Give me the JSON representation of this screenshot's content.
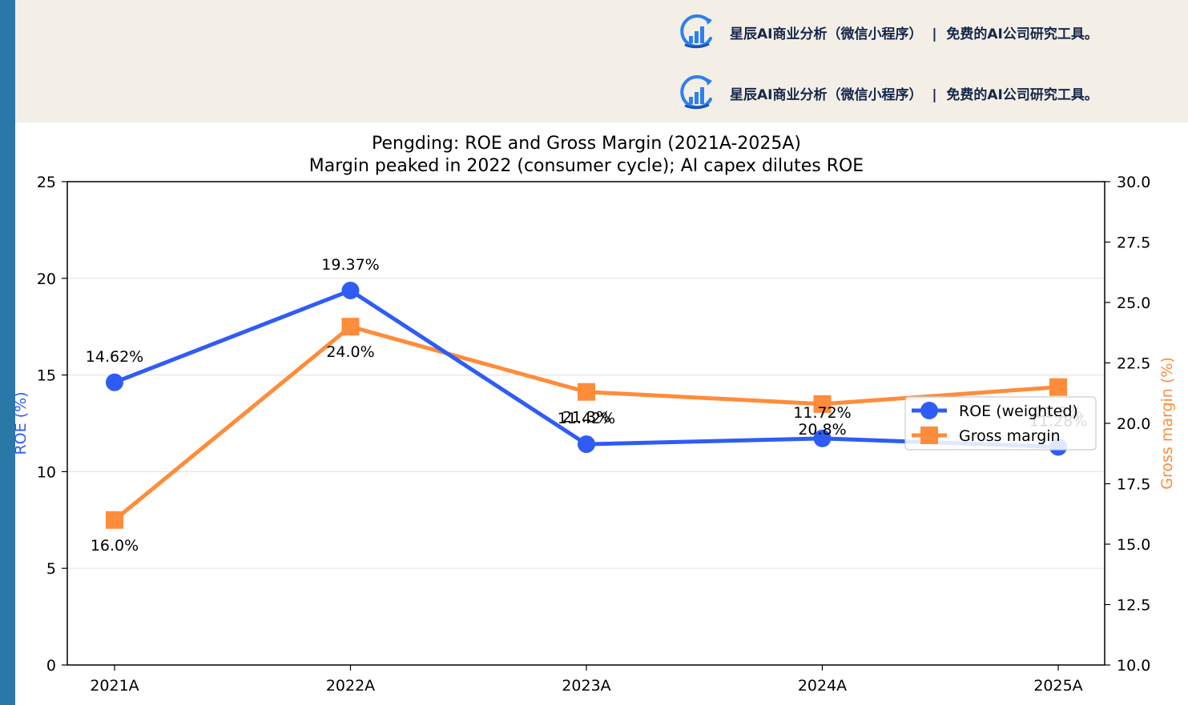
{
  "colors": {
    "left_strip": "#2a78a8",
    "banner_bg": "#f3efe7",
    "roe": "#2f5cf5",
    "margin": "#ff8c3a",
    "grid": "#e6e6e6",
    "axis": "#000000"
  },
  "banner": {
    "items": [
      {
        "icon": "bar-chart-refresh-logo-icon",
        "text": "星辰AI商业分析（微信小程序）  |  免费的AI公司研究工具。"
      },
      {
        "icon": "bar-chart-refresh-logo-icon",
        "text": "星辰AI商业分析（微信小程序）  |  免费的AI公司研究工具。"
      }
    ]
  },
  "chart_data": {
    "type": "line",
    "title": "Pengding: ROE and Gross Margin (2021A-2025A)",
    "subtitle": "Margin peaked in 2022 (consumer cycle); AI capex dilutes ROE",
    "categories": [
      "2021A",
      "2022A",
      "2023A",
      "2024A",
      "2025A"
    ],
    "ylabel_left": "ROE (%)",
    "ylabel_right": "Gross margin (%)",
    "ylim_left": [
      0,
      25
    ],
    "ylim_right": [
      10,
      30
    ],
    "yticks_left": [
      "0",
      "5",
      "10",
      "15",
      "20",
      "25"
    ],
    "yticks_right": [
      "10.0",
      "12.5",
      "15.0",
      "17.5",
      "20.0",
      "22.5",
      "25.0",
      "27.5",
      "30.0"
    ],
    "grid": true,
    "legend_position": "center-right",
    "series": [
      {
        "name": "ROE (weighted)",
        "axis": "left",
        "marker": "circle",
        "values": [
          14.62,
          19.37,
          11.42,
          11.72,
          11.28
        ],
        "labels": [
          "14.62%",
          "19.37%",
          "11.42%",
          "11.72%",
          "11.28%"
        ]
      },
      {
        "name": "Gross margin",
        "axis": "right",
        "marker": "square",
        "values": [
          16.0,
          24.0,
          21.3,
          20.8,
          21.5
        ],
        "labels": [
          "16.0%",
          "24.0%",
          "21.3%",
          "20.8%",
          "21.5%"
        ]
      }
    ]
  }
}
